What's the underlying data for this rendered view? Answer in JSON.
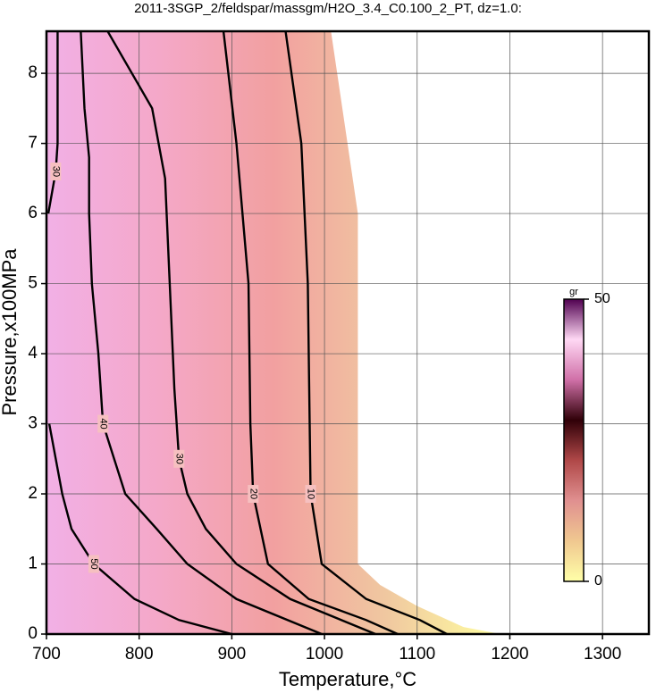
{
  "chart_data": {
    "type": "contour",
    "title": "2011-3SGP_2/feldspar/massgm/H2O_3.4_C0.100_2_PT, dz=1.0:",
    "xlabel": "Temperature,°C",
    "ylabel": "Pressure,x100MPa",
    "xlim": [
      700,
      1350
    ],
    "ylim": [
      0,
      8.6
    ],
    "xticks": [
      700,
      800,
      900,
      1000,
      1100,
      1200,
      1300
    ],
    "yticks": [
      0,
      1,
      2,
      3,
      4,
      5,
      6,
      7,
      8
    ],
    "grid": true,
    "field_boundary": {
      "x": [
        700,
        1007,
        1036,
        1036,
        1060,
        1100,
        1150,
        1190,
        700
      ],
      "y": [
        8.6,
        8.6,
        6,
        1.0,
        0.7,
        0.4,
        0.1,
        0,
        0
      ]
    },
    "contours": [
      {
        "level": 10,
        "x": [
          958,
          975,
          982,
          984,
          985,
          997,
          1045,
          1103,
          1132
        ],
        "y": [
          8.6,
          7,
          5,
          3,
          2,
          1,
          0.5,
          0.2,
          0
        ]
      },
      {
        "level": 20,
        "x": [
          891,
          905,
          918,
          920,
          923,
          939,
          983,
          1045,
          1079
        ],
        "y": [
          8.6,
          7,
          5,
          3,
          2,
          1,
          0.5,
          0.2,
          0
        ]
      },
      {
        "level": 30,
        "x": [
          766,
          814,
          828,
          833,
          838,
          843,
          852,
          872,
          905,
          963,
          1055
        ],
        "y": [
          8.6,
          7.5,
          6.5,
          5,
          3.5,
          2.5,
          2,
          1.5,
          1,
          0.5,
          0
        ]
      },
      {
        "level": 40,
        "x": [
          737,
          741,
          746,
          746,
          749,
          756,
          761,
          785,
          819,
          852,
          905,
          997
        ],
        "y": [
          8.6,
          7.5,
          6.8,
          6,
          5,
          4,
          3,
          2,
          1.5,
          1,
          0.5,
          0
        ]
      },
      {
        "level": 50,
        "x": [
          703,
          717,
          727,
          751,
          795,
          843,
          900
        ],
        "y": [
          3,
          2,
          1.5,
          1,
          0.5,
          0.2,
          0
        ]
      },
      {
        "level": 30,
        "x": [
          712,
          712,
          710,
          702
        ],
        "y": [
          8.6,
          7,
          6.6,
          6
        ]
      }
    ],
    "colorbar": {
      "label": "gr",
      "lim": [
        0,
        50
      ],
      "ticks": [
        0,
        50
      ],
      "colors": [
        "#ffffa8",
        "#f0c890",
        "#e09090",
        "#b04848",
        "#300008",
        "#d070a8",
        "#ffd8f4",
        "#500050"
      ]
    }
  }
}
